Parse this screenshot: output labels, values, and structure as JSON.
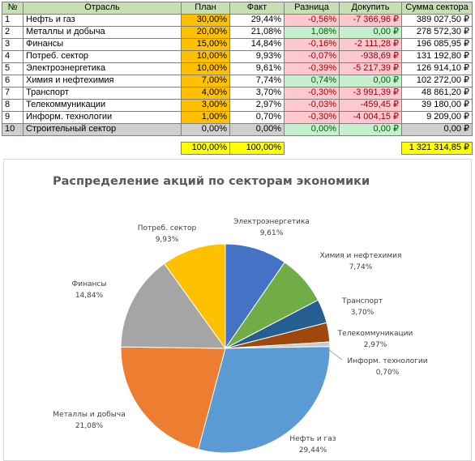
{
  "table": {
    "header": [
      "№",
      "Отрасль",
      "План",
      "Факт",
      "Разница",
      "Докупить",
      "Сумма сектора"
    ],
    "rows": [
      [
        "1",
        "Нефть и газ",
        "30,00%",
        "29,44%",
        "-0,56%",
        "-7 366,96 ₽",
        "389 027,50 ₽"
      ],
      [
        "2",
        "Металлы и добыча",
        "20,00%",
        "21,08%",
        "1,08%",
        "0,00 ₽",
        "278 572,30 ₽"
      ],
      [
        "3",
        "Финансы",
        "15,00%",
        "14,84%",
        "-0,16%",
        "-2 111,28 ₽",
        "196 085,95 ₽"
      ],
      [
        "4",
        "Потреб. сектор",
        "10,00%",
        "9,93%",
        "-0,07%",
        "-938,69 ₽",
        "131 192,80 ₽"
      ],
      [
        "5",
        "Электроэнергетика",
        "10,00%",
        "9,61%",
        "-0,39%",
        "-5 217,39 ₽",
        "126 914,10 ₽"
      ],
      [
        "6",
        "Химия и нефтехимия",
        "7,00%",
        "7,74%",
        "0,74%",
        "0,00 ₽",
        "102 272,00 ₽"
      ],
      [
        "7",
        "Транспорт",
        "4,00%",
        "3,70%",
        "-0,30%",
        "-3 991,39 ₽",
        "48 861,20 ₽"
      ],
      [
        "8",
        "Телекоммуникации",
        "3,00%",
        "2,97%",
        "-0,03%",
        "-459,45 ₽",
        "39 180,00 ₽"
      ],
      [
        "9",
        "Информ. технологии",
        "1,00%",
        "0,70%",
        "-0,30%",
        "-4 004,15 ₽",
        "9 209,00 ₽"
      ],
      [
        "10",
        "Строительный сектор",
        "0,00%",
        "0,00%",
        "0,00%",
        "0,00 ₽",
        "0,00 ₽"
      ]
    ],
    "totals": {
      "plan": "100,00%",
      "fact": "100,00%",
      "sum": "1 321 314,85 ₽"
    }
  },
  "chart_data": {
    "type": "pie",
    "title": "Распределение акций по секторам экономики",
    "categories": [
      "Электроэнергетика",
      "Химия и нефтехимия",
      "Транспорт",
      "Телекоммуникации",
      "Информ. технологии",
      "Нефть и газ",
      "Металлы и добыча",
      "Финансы",
      "Потреб. сектор"
    ],
    "values": [
      9.61,
      7.74,
      3.7,
      2.97,
      0.7,
      29.44,
      21.08,
      14.84,
      9.93
    ],
    "value_labels": [
      "9,61%",
      "7,74%",
      "3,70%",
      "2,97%",
      "0,70%",
      "29,44%",
      "21,08%",
      "14,84%",
      "9,93%"
    ],
    "colors": [
      "#4472c4",
      "#70ad47",
      "#255e91",
      "#9e480e",
      "#c9c9c9",
      "#5b9bd5",
      "#ed7d31",
      "#a5a5a5",
      "#ffc000"
    ]
  }
}
